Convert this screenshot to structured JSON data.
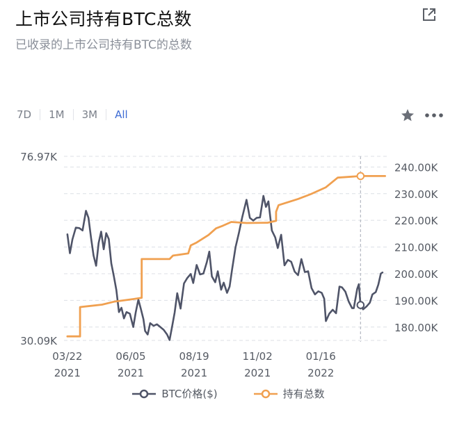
{
  "header": {
    "title": "上市公司持有BTC总数",
    "subtitle": "已收录的上市公司持有BTC的总数"
  },
  "tabs": [
    {
      "label": "7D",
      "active": false
    },
    {
      "label": "1M",
      "active": false
    },
    {
      "label": "3M",
      "active": false
    },
    {
      "label": "All",
      "active": true
    }
  ],
  "icons": {
    "external": "external-link-icon",
    "favorite": "star-icon",
    "more": "more-dots-icon"
  },
  "colors": {
    "btc": "#4f5468",
    "holdings": "#f0a050",
    "accent": "#3d6bd4"
  },
  "chart_data": {
    "type": "line",
    "title": "上市公司持有BTC总数",
    "x_tick_labels": [
      {
        "date": "2021-03-22",
        "line1": "03/22",
        "line2": "2021"
      },
      {
        "date": "2021-06-05",
        "line1": "06/05",
        "line2": "2021"
      },
      {
        "date": "2021-08-19",
        "line1": "08/19",
        "line2": "2021"
      },
      {
        "date": "2021-11-02",
        "line1": "11/02",
        "line2": "2021"
      },
      {
        "date": "2022-01-16",
        "line1": "01/16",
        "line2": "2022"
      }
    ],
    "xlim": [
      "2021-03-18",
      "2022-04-04"
    ],
    "left_axis": {
      "top_label": "76.97K",
      "bottom_label": "30.09K",
      "ylim": [
        30090,
        76970
      ]
    },
    "right_axis": {
      "ticks": [
        "240.00K",
        "230.00K",
        "220.00K",
        "210.00K",
        "200.00K",
        "190.00K",
        "180.00K"
      ],
      "tick_values": [
        240000,
        230000,
        220000,
        210000,
        200000,
        190000,
        180000
      ],
      "ylim": [
        175000,
        244000
      ]
    },
    "hover_date": "2022-03-04",
    "series": [
      {
        "name": "BTC价格($)",
        "axis": "left",
        "marker": "circle",
        "points": [
          [
            "2021-03-22",
            57100
          ],
          [
            "2021-03-25",
            52300
          ],
          [
            "2021-03-28",
            55800
          ],
          [
            "2021-04-01",
            58800
          ],
          [
            "2021-04-05",
            58700
          ],
          [
            "2021-04-09",
            58100
          ],
          [
            "2021-04-13",
            63100
          ],
          [
            "2021-04-16",
            61300
          ],
          [
            "2021-04-19",
            56200
          ],
          [
            "2021-04-22",
            51700
          ],
          [
            "2021-04-25",
            49100
          ],
          [
            "2021-04-28",
            54900
          ],
          [
            "2021-05-01",
            57800
          ],
          [
            "2021-05-04",
            53300
          ],
          [
            "2021-05-07",
            57400
          ],
          [
            "2021-05-10",
            55900
          ],
          [
            "2021-05-13",
            49700
          ],
          [
            "2021-05-16",
            46400
          ],
          [
            "2021-05-19",
            42900
          ],
          [
            "2021-05-22",
            37300
          ],
          [
            "2021-05-25",
            38400
          ],
          [
            "2021-05-28",
            35700
          ],
          [
            "2021-05-31",
            37300
          ],
          [
            "2021-06-04",
            36900
          ],
          [
            "2021-06-08",
            33500
          ],
          [
            "2021-06-11",
            37300
          ],
          [
            "2021-06-14",
            40500
          ],
          [
            "2021-06-17",
            38100
          ],
          [
            "2021-06-20",
            35500
          ],
          [
            "2021-06-22",
            32500
          ],
          [
            "2021-06-25",
            31600
          ],
          [
            "2021-06-28",
            34500
          ],
          [
            "2021-07-02",
            33800
          ],
          [
            "2021-07-06",
            34200
          ],
          [
            "2021-07-10",
            33500
          ],
          [
            "2021-07-14",
            32800
          ],
          [
            "2021-07-18",
            31600
          ],
          [
            "2021-07-21",
            30200
          ],
          [
            "2021-07-24",
            33700
          ],
          [
            "2021-07-27",
            37200
          ],
          [
            "2021-07-30",
            42100
          ],
          [
            "2021-08-03",
            38200
          ],
          [
            "2021-08-07",
            44600
          ],
          [
            "2021-08-11",
            46000
          ],
          [
            "2021-08-15",
            47000
          ],
          [
            "2021-08-18",
            44700
          ],
          [
            "2021-08-22",
            49300
          ],
          [
            "2021-08-26",
            46900
          ],
          [
            "2021-08-30",
            47100
          ],
          [
            "2021-09-03",
            50000
          ],
          [
            "2021-09-06",
            52700
          ],
          [
            "2021-09-09",
            46400
          ],
          [
            "2021-09-13",
            44900
          ],
          [
            "2021-09-16",
            47700
          ],
          [
            "2021-09-20",
            43000
          ],
          [
            "2021-09-23",
            44800
          ],
          [
            "2021-09-27",
            42200
          ],
          [
            "2021-09-30",
            43800
          ],
          [
            "2021-10-03",
            48200
          ],
          [
            "2021-10-07",
            53800
          ],
          [
            "2021-10-11",
            57400
          ],
          [
            "2021-10-15",
            61500
          ],
          [
            "2021-10-20",
            65900
          ],
          [
            "2021-10-24",
            61300
          ],
          [
            "2021-10-28",
            60600
          ],
          [
            "2021-11-01",
            61300
          ],
          [
            "2021-11-05",
            61400
          ],
          [
            "2021-11-09",
            66900
          ],
          [
            "2021-11-12",
            64100
          ],
          [
            "2021-11-15",
            65500
          ],
          [
            "2021-11-19",
            58100
          ],
          [
            "2021-11-23",
            56300
          ],
          [
            "2021-11-26",
            53600
          ],
          [
            "2021-11-30",
            57000
          ],
          [
            "2021-12-04",
            49200
          ],
          [
            "2021-12-08",
            50600
          ],
          [
            "2021-12-12",
            50100
          ],
          [
            "2021-12-16",
            47600
          ],
          [
            "2021-12-20",
            46700
          ],
          [
            "2021-12-24",
            50800
          ],
          [
            "2021-12-28",
            47500
          ],
          [
            "2022-01-01",
            47700
          ],
          [
            "2022-01-05",
            43400
          ],
          [
            "2022-01-09",
            41800
          ],
          [
            "2022-01-13",
            42600
          ],
          [
            "2022-01-17",
            42200
          ],
          [
            "2022-01-20",
            40700
          ],
          [
            "2022-01-22",
            35000
          ],
          [
            "2022-01-26",
            36900
          ],
          [
            "2022-01-30",
            37900
          ],
          [
            "2022-02-03",
            37000
          ],
          [
            "2022-02-07",
            43800
          ],
          [
            "2022-02-10",
            43600
          ],
          [
            "2022-02-14",
            42500
          ],
          [
            "2022-02-18",
            40000
          ],
          [
            "2022-02-22",
            38300
          ],
          [
            "2022-02-24",
            38300
          ],
          [
            "2022-02-28",
            43200
          ],
          [
            "2022-03-02",
            44400
          ],
          [
            "2022-03-04",
            39100
          ],
          [
            "2022-03-07",
            38000
          ],
          [
            "2022-03-11",
            38700
          ],
          [
            "2022-03-15",
            39700
          ],
          [
            "2022-03-18",
            41800
          ],
          [
            "2022-03-22",
            42400
          ],
          [
            "2022-03-25",
            44300
          ],
          [
            "2022-03-28",
            47100
          ],
          [
            "2022-03-30",
            47400
          ]
        ]
      },
      {
        "name": "持有总数",
        "axis": "right",
        "marker": "circle",
        "points": [
          [
            "2021-03-22",
            176500
          ],
          [
            "2021-04-06",
            176500
          ],
          [
            "2021-04-06",
            187500
          ],
          [
            "2021-05-02",
            188400
          ],
          [
            "2021-05-16",
            189500
          ],
          [
            "2021-06-08",
            190500
          ],
          [
            "2021-06-18",
            191000
          ],
          [
            "2021-06-18",
            205500
          ],
          [
            "2021-07-21",
            205500
          ],
          [
            "2021-07-25",
            206800
          ],
          [
            "2021-08-12",
            207600
          ],
          [
            "2021-08-15",
            210600
          ],
          [
            "2021-08-22",
            211700
          ],
          [
            "2021-09-05",
            214500
          ],
          [
            "2021-09-14",
            217000
          ],
          [
            "2021-09-22",
            218000
          ],
          [
            "2021-10-02",
            219400
          ],
          [
            "2021-10-20",
            219000
          ],
          [
            "2021-11-14",
            219100
          ],
          [
            "2021-11-24",
            219800
          ],
          [
            "2021-11-24",
            223200
          ],
          [
            "2021-11-27",
            225700
          ],
          [
            "2021-12-20",
            228000
          ],
          [
            "2022-01-04",
            229800
          ],
          [
            "2022-01-22",
            232400
          ],
          [
            "2022-02-05",
            236000
          ],
          [
            "2022-03-04",
            236600
          ],
          [
            "2022-04-02",
            236600
          ]
        ]
      }
    ]
  }
}
